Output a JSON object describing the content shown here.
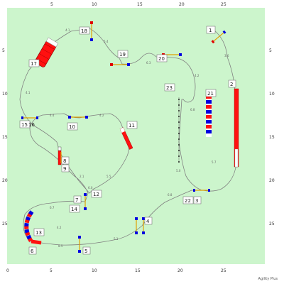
{
  "watermark": "Agility Plus",
  "colors": {
    "field": "#ccf5cc",
    "path": "#808080",
    "bar_red": "#e00000",
    "bar_blue": "#0000e0",
    "tunnel_red": "#ff1010"
  },
  "scale": {
    "top": [
      "5",
      "10",
      "15",
      "20",
      "25"
    ],
    "bottom": [
      "0",
      "5",
      "10",
      "15",
      "20",
      "25"
    ],
    "left": [
      "5",
      "10",
      "15",
      "20",
      "25"
    ],
    "right": [
      "5",
      "10",
      "15",
      "20",
      "25"
    ]
  },
  "numbers": [
    "1",
    "2",
    "3",
    "4",
    "5",
    "6",
    "7",
    "8",
    "9",
    "10",
    "11",
    "12",
    "13",
    "14",
    "15",
    "16",
    "17",
    "18",
    "19",
    "20",
    "21",
    "22",
    "23"
  ],
  "distances": [
    "4.1",
    "5.4",
    "6.3",
    "4.2",
    "3.6",
    "4.1",
    "4.4",
    "4.2",
    "5.5",
    "2.1",
    "6.0",
    "6.7",
    "4.2",
    "8.5",
    "5.1",
    "6.8",
    "5.7",
    "6.8",
    "5.0"
  ]
}
